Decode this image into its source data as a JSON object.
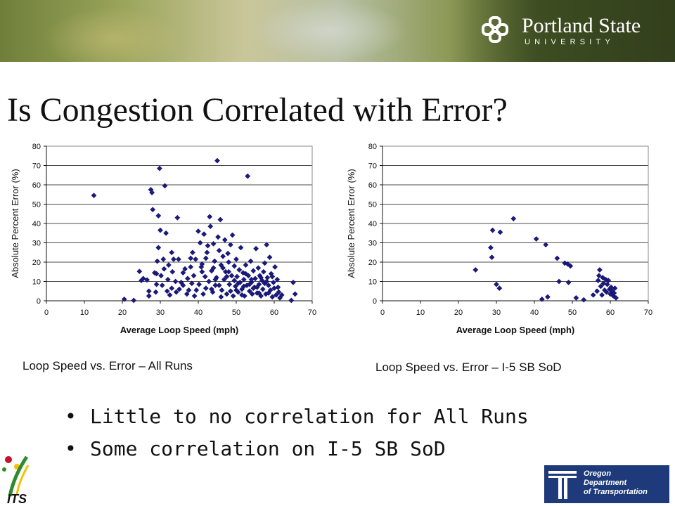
{
  "header": {
    "university_name": "Portland State",
    "university_sub": "UNIVERSITY",
    "logo_icon": "psu-knot-icon"
  },
  "slide": {
    "title": "Is Congestion Correlated with Error?"
  },
  "chart_data": [
    {
      "type": "scatter",
      "xlabel": "Average Loop Speed (mph)",
      "ylabel": "Absolute Percent Error (%)",
      "xlim": [
        0,
        70
      ],
      "ylim": [
        0,
        80
      ],
      "xticks": [
        "0",
        "10",
        "20",
        "30",
        "40",
        "50",
        "60",
        "70"
      ],
      "yticks": [
        "0",
        "10",
        "20",
        "30",
        "40",
        "50",
        "60",
        "70",
        "80"
      ],
      "grid": "horizontal",
      "marker_color": "#1a1a80",
      "caption": "Loop Speed vs. Error – All Runs",
      "points": [
        [
          12.5,
          54.5
        ],
        [
          20.5,
          0.8
        ],
        [
          23,
          0.2
        ],
        [
          24.5,
          15.2
        ],
        [
          25,
          10.5
        ],
        [
          25.5,
          11.5
        ],
        [
          26.5,
          10.8
        ],
        [
          27,
          2.5
        ],
        [
          27.5,
          57.5
        ],
        [
          27.8,
          56
        ],
        [
          28,
          47.2
        ],
        [
          28.5,
          14.5
        ],
        [
          28.8,
          4.5
        ],
        [
          29,
          8.5
        ],
        [
          29.2,
          20.5
        ],
        [
          29.5,
          27.5
        ],
        [
          29.5,
          44
        ],
        [
          29.8,
          68.5
        ],
        [
          30,
          36.5
        ],
        [
          30.2,
          13
        ],
        [
          30.5,
          8
        ],
        [
          30.8,
          21.5
        ],
        [
          31,
          16.5
        ],
        [
          31.2,
          59.5
        ],
        [
          31.5,
          35
        ],
        [
          31.8,
          5
        ],
        [
          32,
          11
        ],
        [
          32.2,
          18.5
        ],
        [
          32.5,
          3
        ],
        [
          33,
          6.5
        ],
        [
          33.2,
          15
        ],
        [
          33.5,
          21.5
        ],
        [
          34,
          10
        ],
        [
          34.2,
          4.5
        ],
        [
          34.5,
          43
        ],
        [
          34.8,
          21.5
        ],
        [
          35,
          6
        ],
        [
          35.5,
          9.5
        ],
        [
          36,
          14.5
        ],
        [
          36.5,
          16.5
        ],
        [
          37,
          3.5
        ],
        [
          37.2,
          11.5
        ],
        [
          37.5,
          5.5
        ],
        [
          38,
          22
        ],
        [
          38.3,
          9
        ],
        [
          38.5,
          25
        ],
        [
          38.8,
          13
        ],
        [
          39,
          2.5
        ],
        [
          39.3,
          21.5
        ],
        [
          39.5,
          5.5
        ],
        [
          40,
          36
        ],
        [
          40.2,
          8.5
        ],
        [
          40.5,
          30
        ],
        [
          40.8,
          17.5
        ],
        [
          41,
          19
        ],
        [
          41.3,
          3.5
        ],
        [
          41.5,
          34.5
        ],
        [
          41.8,
          12.5
        ],
        [
          42,
          6.5
        ],
        [
          42.3,
          25
        ],
        [
          42.5,
          28.5
        ],
        [
          42.8,
          10
        ],
        [
          43,
          43.5
        ],
        [
          43.2,
          38.5
        ],
        [
          43.5,
          15.5
        ],
        [
          43.8,
          4.5
        ],
        [
          44,
          29.5
        ],
        [
          44.3,
          20.5
        ],
        [
          44.5,
          8
        ],
        [
          44.8,
          12
        ],
        [
          45,
          72.5
        ],
        [
          45.2,
          33
        ],
        [
          45.5,
          26
        ],
        [
          45.8,
          42
        ],
        [
          46,
          18.5
        ],
        [
          46.2,
          5.5
        ],
        [
          46.5,
          23
        ],
        [
          46.8,
          11
        ],
        [
          47,
          31.5
        ],
        [
          47.2,
          15
        ],
        [
          47.5,
          3.5
        ],
        [
          47.8,
          24.5
        ],
        [
          48,
          20
        ],
        [
          48.2,
          8.5
        ],
        [
          48.5,
          29
        ],
        [
          48.8,
          13
        ],
        [
          49,
          34
        ],
        [
          49.2,
          2.5
        ],
        [
          49.5,
          18
        ],
        [
          49.8,
          7.5
        ],
        [
          50,
          21.5
        ],
        [
          50.2,
          12.5
        ],
        [
          50.5,
          4.5
        ],
        [
          50.8,
          16
        ],
        [
          51,
          9.5
        ],
        [
          51.2,
          27.5
        ],
        [
          51.5,
          6
        ],
        [
          51.8,
          14.5
        ],
        [
          52,
          11
        ],
        [
          52.2,
          2.5
        ],
        [
          52.5,
          18.5
        ],
        [
          52.8,
          8
        ],
        [
          53,
          64.5
        ],
        [
          53.2,
          13
        ],
        [
          53.5,
          5
        ],
        [
          53.8,
          20.5
        ],
        [
          54,
          9.5
        ],
        [
          54.2,
          3.5
        ],
        [
          54.5,
          15.5
        ],
        [
          54.8,
          7
        ],
        [
          55,
          11.5
        ],
        [
          55.2,
          27
        ],
        [
          55.5,
          4
        ],
        [
          55.8,
          17
        ],
        [
          56,
          8.5
        ],
        [
          56.2,
          13
        ],
        [
          56.5,
          2.5
        ],
        [
          56.8,
          10.5
        ],
        [
          57,
          6
        ],
        [
          57.2,
          15
        ],
        [
          57.5,
          19.5
        ],
        [
          57.8,
          3.5
        ],
        [
          58,
          29
        ],
        [
          58.2,
          12
        ],
        [
          58.5,
          8
        ],
        [
          58.8,
          22.5
        ],
        [
          59,
          5.5
        ],
        [
          59.2,
          14
        ],
        [
          59.5,
          2
        ],
        [
          59.8,
          9.5
        ],
        [
          60,
          6.5
        ],
        [
          60.2,
          17.5
        ],
        [
          60.5,
          3
        ],
        [
          60.8,
          11
        ],
        [
          61,
          7
        ],
        [
          61.2,
          4.5
        ],
        [
          61.5,
          1.5
        ],
        [
          62,
          3
        ],
        [
          64.5,
          0.2
        ],
        [
          65,
          9.5
        ],
        [
          65.5,
          3.5
        ],
        [
          44.5,
          11
        ],
        [
          46.5,
          17
        ],
        [
          48.5,
          5
        ],
        [
          50.5,
          9
        ],
        [
          52.5,
          14
        ],
        [
          54.5,
          6.5
        ],
        [
          56.5,
          12
        ],
        [
          58.5,
          4
        ],
        [
          45.5,
          8
        ],
        [
          47.5,
          12.5
        ],
        [
          49.5,
          10.5
        ],
        [
          51.5,
          3
        ],
        [
          53.5,
          8.5
        ],
        [
          55.5,
          7
        ],
        [
          57.5,
          9
        ],
        [
          59.5,
          12.5
        ],
        [
          43.5,
          6
        ],
        [
          46,
          2
        ],
        [
          48,
          15
        ],
        [
          50,
          5.5
        ],
        [
          52,
          7.5
        ],
        [
          54,
          11
        ],
        [
          56,
          4
        ],
        [
          58,
          10
        ],
        [
          41,
          15
        ],
        [
          42,
          22
        ],
        [
          44,
          17
        ],
        [
          38,
          17.5
        ],
        [
          36,
          8
        ],
        [
          33,
          25
        ],
        [
          29,
          14
        ],
        [
          27,
          5
        ]
      ]
    },
    {
      "type": "scatter",
      "xlabel": "Average Loop Speed (mph)",
      "ylabel": "Absolute Percent Error (%)",
      "xlim": [
        0,
        70
      ],
      "ylim": [
        0,
        80
      ],
      "xticks": [
        "0",
        "10",
        "20",
        "30",
        "40",
        "50",
        "60",
        "70"
      ],
      "yticks": [
        "0",
        "10",
        "20",
        "30",
        "40",
        "50",
        "60",
        "70",
        "80"
      ],
      "grid": "horizontal",
      "marker_color": "#1a1a80",
      "caption": "Loop Speed vs. Error – I-5 SB SoD",
      "points": [
        [
          24.5,
          16
        ],
        [
          28.5,
          27.5
        ],
        [
          28.8,
          22.5
        ],
        [
          29,
          36.5
        ],
        [
          30,
          8.5
        ],
        [
          30.8,
          6.5
        ],
        [
          31,
          35.5
        ],
        [
          34.5,
          42.5
        ],
        [
          40.5,
          32
        ],
        [
          42,
          0.8
        ],
        [
          43,
          29
        ],
        [
          43.5,
          2
        ],
        [
          46,
          22
        ],
        [
          46.5,
          10
        ],
        [
          48,
          19.5
        ],
        [
          48.8,
          19
        ],
        [
          49,
          9.5
        ],
        [
          49.5,
          18
        ],
        [
          51,
          1.5
        ],
        [
          53,
          0.5
        ],
        [
          55.5,
          3
        ],
        [
          56.5,
          5
        ],
        [
          56.8,
          10.5
        ],
        [
          57,
          13
        ],
        [
          57.2,
          16
        ],
        [
          57.5,
          7.5
        ],
        [
          57.8,
          3
        ],
        [
          58,
          12
        ],
        [
          58.2,
          9
        ],
        [
          58.5,
          5.5
        ],
        [
          58.8,
          11
        ],
        [
          59,
          4.5
        ],
        [
          59.2,
          8.5
        ],
        [
          59.5,
          10.5
        ],
        [
          59.8,
          6
        ],
        [
          60,
          3.5
        ],
        [
          60.2,
          7
        ],
        [
          60.5,
          5
        ],
        [
          60.8,
          2.5
        ],
        [
          61,
          4
        ],
        [
          61.2,
          6.5
        ],
        [
          61.5,
          1.5
        ]
      ]
    }
  ],
  "bullets": [
    "Little to no correlation for All Runs",
    "Some correlation on I-5 SB SoD"
  ],
  "footer": {
    "its_logo_text": "ITS",
    "odot_lines": [
      "Oregon",
      "Department",
      "of Transportation"
    ],
    "odot_icon": "odot-logo-icon"
  }
}
